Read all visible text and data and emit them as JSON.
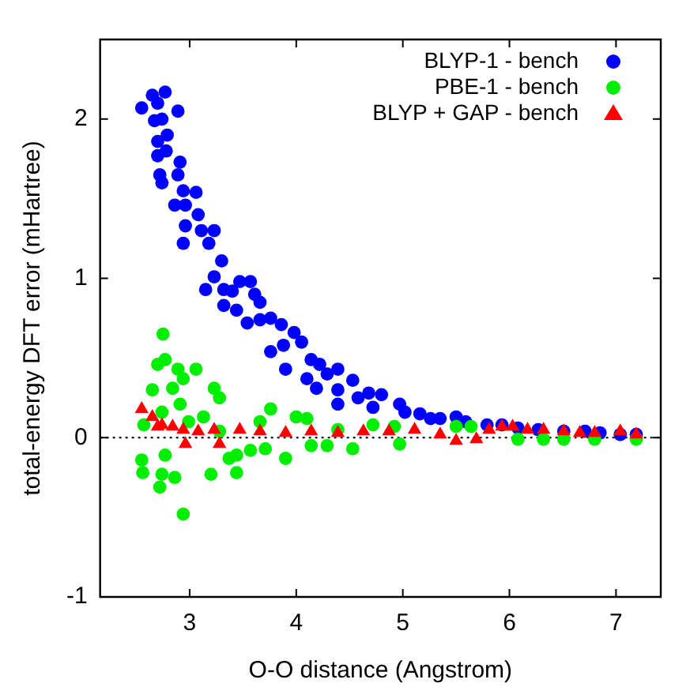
{
  "chart_data": {
    "type": "scatter",
    "xlabel": "O-O distance (Angstrom)",
    "ylabel": "total-energy DFT error (mHartree)",
    "xlim": [
      2.16,
      7.42
    ],
    "xticks": [
      3,
      4,
      5,
      6,
      7
    ],
    "ylim": [
      -1,
      2.5
    ],
    "yticks": [
      -1,
      0,
      1,
      2
    ],
    "grid": false,
    "legend": "top right",
    "ref_lines": [
      {
        "axis": "y",
        "value": 0,
        "line_style": "dotted",
        "color": "#000000"
      }
    ],
    "series": [
      {
        "name": "BLYP-1 - bench",
        "color": "#0000ff",
        "marker": "circle",
        "x": [
          2.55,
          2.65,
          2.77,
          2.7,
          2.89,
          2.67,
          2.74,
          2.7,
          2.79,
          2.7,
          2.78,
          2.72,
          2.91,
          2.74,
          2.89,
          2.94,
          3.06,
          2.86,
          2.96,
          3.08,
          2.96,
          2.94,
          3.11,
          3.23,
          3.18,
          3.3,
          3.15,
          3.23,
          3.32,
          3.32,
          3.44,
          3.47,
          3.57,
          3.61,
          3.66,
          3.54,
          3.66,
          3.76,
          3.76,
          3.86,
          3.88,
          3.98,
          4.05,
          3.9,
          4.14,
          4.1,
          4.22,
          4.29,
          4.39,
          4.19,
          4.39,
          4.53,
          4.39,
          4.58,
          4.68,
          4.8,
          4.72,
          4.97,
          5.02,
          5.16,
          5.26,
          5.35,
          5.5,
          5.59,
          5.79,
          5.93,
          6.08,
          6.27,
          6.51,
          6.71,
          6.85,
          7.04,
          7.19,
          3.4
        ],
        "values": [
          2.07,
          2.15,
          2.17,
          2.1,
          2.05,
          1.99,
          2.0,
          1.86,
          1.9,
          1.77,
          1.8,
          1.65,
          1.73,
          1.6,
          1.65,
          1.55,
          1.54,
          1.46,
          1.46,
          1.4,
          1.33,
          1.22,
          1.3,
          1.3,
          1.22,
          1.11,
          0.93,
          1.01,
          0.93,
          0.83,
          0.8,
          0.98,
          0.98,
          0.9,
          0.85,
          0.72,
          0.74,
          0.75,
          0.54,
          0.71,
          0.58,
          0.66,
          0.6,
          0.43,
          0.49,
          0.37,
          0.46,
          0.4,
          0.43,
          0.31,
          0.3,
          0.36,
          0.21,
          0.25,
          0.28,
          0.27,
          0.19,
          0.21,
          0.16,
          0.15,
          0.12,
          0.12,
          0.13,
          0.1,
          0.08,
          0.08,
          0.06,
          0.05,
          0.04,
          0.04,
          0.03,
          0.02,
          0.02,
          0.92
        ]
      },
      {
        "name": "PBE-1 - bench",
        "color": "#00ee00",
        "marker": "circle",
        "x": [
          2.75,
          2.7,
          2.77,
          2.65,
          2.89,
          2.84,
          2.94,
          3.06,
          2.91,
          3.23,
          3.28,
          2.74,
          2.57,
          2.55,
          2.56,
          2.72,
          2.74,
          2.77,
          2.86,
          2.94,
          3.2,
          3.37,
          3.44,
          3.44,
          3.76,
          3.57,
          3.71,
          3.9,
          3.13,
          2.99,
          4.0,
          4.1,
          4.14,
          4.29,
          4.53,
          4.72,
          4.97,
          5.5,
          5.64,
          6.08,
          6.32,
          6.51,
          6.8,
          7.19,
          3.66,
          4.39,
          3.28,
          4.92
        ],
        "values": [
          0.65,
          0.46,
          0.49,
          0.3,
          0.43,
          0.31,
          0.37,
          0.43,
          0.21,
          0.31,
          0.25,
          0.16,
          0.08,
          -0.14,
          -0.22,
          -0.31,
          -0.23,
          -0.11,
          -0.25,
          -0.48,
          -0.23,
          -0.13,
          -0.22,
          -0.11,
          0.18,
          -0.08,
          -0.07,
          -0.13,
          0.13,
          0.1,
          0.13,
          0.12,
          -0.05,
          -0.05,
          -0.07,
          0.08,
          -0.04,
          0.07,
          0.07,
          -0.01,
          -0.01,
          -0.01,
          -0.01,
          -0.01,
          0.1,
          0.05,
          0.04,
          0.07
        ]
      },
      {
        "name": "BLYP + GAP - bench",
        "color": "#ff0000",
        "marker": "triangle",
        "x": [
          2.55,
          2.65,
          2.74,
          2.94,
          2.96,
          3.23,
          3.28,
          3.47,
          3.66,
          3.9,
          4.14,
          4.39,
          4.63,
          4.87,
          5.11,
          5.35,
          5.5,
          5.69,
          5.81,
          5.93,
          6.03,
          6.17,
          6.32,
          6.51,
          6.66,
          6.8,
          7.04,
          7.19,
          3.08,
          2.7,
          2.84
        ],
        "values": [
          0.18,
          0.13,
          0.08,
          0.05,
          -0.04,
          0.05,
          -0.04,
          0.05,
          0.04,
          0.03,
          0.04,
          0.03,
          0.04,
          0.04,
          0.05,
          0.02,
          -0.02,
          -0.01,
          0.05,
          0.07,
          0.07,
          0.05,
          0.05,
          0.04,
          0.03,
          0.03,
          0.04,
          0.02,
          0.04,
          0.07,
          0.07
        ]
      }
    ]
  }
}
